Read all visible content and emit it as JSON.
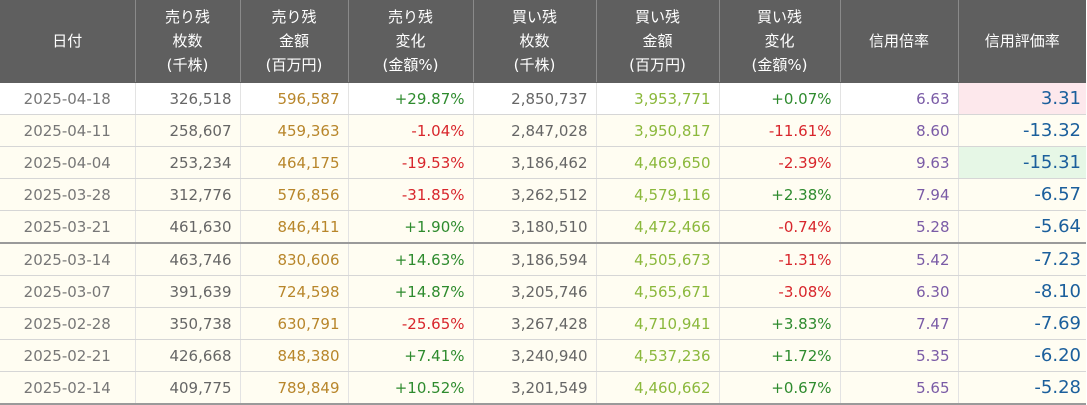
{
  "headers": [
    [
      "日付"
    ],
    [
      "売り残",
      "枚数",
      "(千株)"
    ],
    [
      "売り残",
      "金額",
      "(百万円)"
    ],
    [
      "売り残",
      "変化",
      "(金額%)"
    ],
    [
      "買い残",
      "枚数",
      "(千株)"
    ],
    [
      "買い残",
      "金額",
      "(百万円)"
    ],
    [
      "買い残",
      "変化",
      "(金額%)"
    ],
    [
      "信用倍率"
    ],
    [
      "信用評価率"
    ]
  ],
  "rows": [
    [
      "2025-04-18",
      "326,518",
      "596,587",
      "+29.87%",
      "2,850,737",
      "3,953,771",
      "+0.07%",
      "6.63",
      "3.31"
    ],
    [
      "2025-04-11",
      "258,607",
      "459,363",
      "-1.04%",
      "2,847,028",
      "3,950,817",
      "-11.61%",
      "8.60",
      "-13.32"
    ],
    [
      "2025-04-04",
      "253,234",
      "464,175",
      "-19.53%",
      "3,186,462",
      "4,469,650",
      "-2.39%",
      "9.63",
      "-15.31"
    ],
    [
      "2025-03-28",
      "312,776",
      "576,856",
      "-31.85%",
      "3,262,512",
      "4,579,116",
      "+2.38%",
      "7.94",
      "-6.57"
    ],
    [
      "2025-03-21",
      "461,630",
      "846,411",
      "+1.90%",
      "3,180,510",
      "4,472,466",
      "-0.74%",
      "5.28",
      "-5.64"
    ],
    [
      "2025-03-14",
      "463,746",
      "830,606",
      "+14.63%",
      "3,186,594",
      "4,505,673",
      "-1.31%",
      "5.42",
      "-7.23"
    ],
    [
      "2025-03-07",
      "391,639",
      "724,598",
      "+14.87%",
      "3,205,746",
      "4,565,671",
      "-3.08%",
      "6.30",
      "-8.10"
    ],
    [
      "2025-02-28",
      "350,738",
      "630,791",
      "-25.65%",
      "3,267,428",
      "4,710,941",
      "+3.83%",
      "7.47",
      "-7.69"
    ],
    [
      "2025-02-21",
      "426,668",
      "848,380",
      "+7.41%",
      "3,240,940",
      "4,537,236",
      "+1.72%",
      "5.35",
      "-6.20"
    ],
    [
      "2025-02-14",
      "409,775",
      "789,849",
      "+10.52%",
      "3,201,549",
      "4,460,662",
      "+0.67%",
      "5.65",
      "-5.28"
    ]
  ],
  "colors": {
    "header_bg": "#5f5f5f",
    "sell_amount": "#b8862b",
    "buy_amount": "#8bb83c",
    "positive": "#2e8b2e",
    "negative": "#d8262c",
    "ratio": "#7a5ba6",
    "eval": "#1b5f9c",
    "eval_highlight_max": "#fde8ec",
    "eval_highlight_min": "#e6f7e6"
  }
}
